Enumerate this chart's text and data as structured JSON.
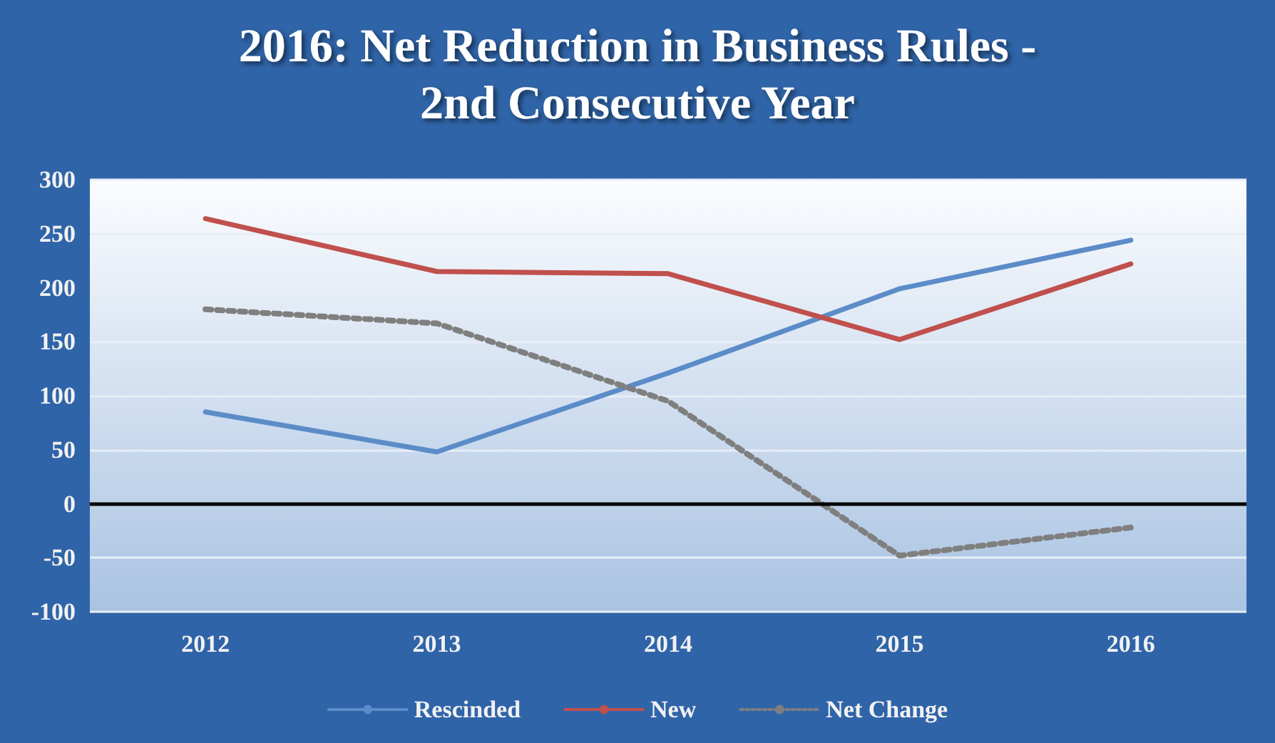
{
  "chart_data": {
    "type": "line",
    "title": "2016: Net Reduction in Business Rules -\n2nd Consecutive Year",
    "categories": [
      "2012",
      "2013",
      "2014",
      "2015",
      "2016"
    ],
    "series": [
      {
        "name": "Rescinded",
        "color": "#5b8cc8",
        "line_style": "solid",
        "values": [
          85,
          48,
          121,
          199,
          244
        ]
      },
      {
        "name": "New",
        "color": "#c0504d",
        "line_style": "solid",
        "values": [
          264,
          215,
          213,
          152,
          222
        ]
      },
      {
        "name": "Net Change",
        "color": "#7f7f7f",
        "line_style": "dotted",
        "values": [
          180,
          167,
          95,
          -48,
          -22
        ]
      }
    ],
    "ylim": [
      -100,
      300
    ],
    "yticks": [
      -100,
      -50,
      0,
      50,
      100,
      150,
      200,
      250,
      300
    ],
    "grid": "y",
    "legend": "bottom",
    "marker": "none",
    "ref_lines": [
      {
        "axis": "y",
        "value": 0,
        "color": "#000000"
      }
    ]
  }
}
